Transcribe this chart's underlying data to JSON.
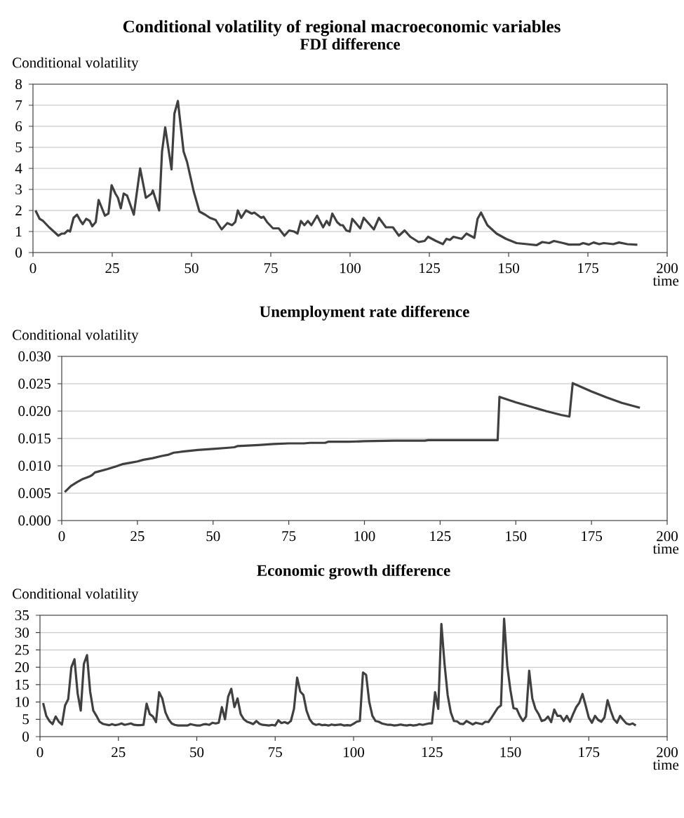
{
  "chart_data": [
    {
      "type": "line",
      "title": "FDI difference",
      "ylabel": "Conditional volatility",
      "xlabel": "time",
      "annotations": [
        "Conditional volatility of regional macroeconomic variables"
      ],
      "color": "#404040",
      "grid": "y",
      "xlim": [
        0,
        200
      ],
      "xticks": [
        0,
        25,
        50,
        75,
        100,
        125,
        150,
        175,
        200
      ],
      "ylim": [
        0,
        8
      ],
      "yticks": [
        0,
        1,
        2,
        3,
        4,
        5,
        6,
        7,
        8
      ],
      "x": [
        0.8,
        2.1,
        3.2,
        5.1,
        7.3,
        8,
        9.1,
        9.9,
        11,
        11.7,
        12.8,
        13.9,
        15,
        15.7,
        16.8,
        17.9,
        18.7,
        19.8,
        20.7,
        22.7,
        23.8,
        24.8,
        26,
        26.8,
        27.7,
        28.6,
        29.7,
        31.8,
        33.8,
        35.6,
        37.4,
        37.8,
        39.8,
        40.7,
        41.7,
        43.7,
        44.6,
        45.7,
        46.6,
        47.5,
        48.6,
        50.7,
        52.5,
        54.3,
        55.8,
        57.6,
        59.5,
        61.3,
        62.8,
        63.8,
        64.6,
        65.7,
        67.2,
        69,
        69.8,
        72,
        72.7,
        73.8,
        75.7,
        77.5,
        79.3,
        80.8,
        82.3,
        83.4,
        84.5,
        85.6,
        86.7,
        87.8,
        89.6,
        91.5,
        92.6,
        93.5,
        94.4,
        95.9,
        97,
        97.7,
        98.8,
        99.9,
        100.7,
        103.2,
        104.3,
        107.5,
        109.1,
        111.3,
        113.5,
        115.4,
        117.2,
        119,
        121.6,
        123.5,
        124.6,
        127.1,
        129.3,
        130.4,
        131.5,
        132.6,
        135.2,
        136.7,
        139.2,
        140.2,
        141.3,
        143.3,
        146.2,
        149.2,
        152.5,
        155.8,
        158.8,
        160.6,
        162.8,
        164.3,
        167.2,
        169,
        172.4,
        173.5,
        175.3,
        176.8,
        178.6,
        180,
        183,
        184.8,
        187.4,
        190.6
      ],
      "values": [
        2.0,
        1.6,
        1.5,
        1.2,
        0.9,
        0.8,
        0.9,
        0.9,
        1.05,
        1.0,
        1.65,
        1.8,
        1.5,
        1.35,
        1.6,
        1.5,
        1.25,
        1.45,
        2.5,
        1.75,
        1.85,
        3.2,
        2.8,
        2.6,
        2.1,
        2.8,
        2.7,
        1.8,
        4.0,
        2.6,
        2.8,
        2.95,
        2.0,
        4.8,
        5.95,
        3.95,
        6.6,
        7.2,
        6.0,
        4.8,
        4.3,
        2.9,
        1.95,
        1.8,
        1.65,
        1.55,
        1.1,
        1.4,
        1.3,
        1.45,
        2.0,
        1.65,
        2.0,
        1.85,
        1.9,
        1.65,
        1.7,
        1.45,
        1.15,
        1.15,
        0.8,
        1.05,
        1.0,
        0.9,
        1.5,
        1.3,
        1.5,
        1.3,
        1.75,
        1.2,
        1.5,
        1.3,
        1.85,
        1.45,
        1.3,
        1.3,
        1.05,
        1.0,
        1.6,
        1.15,
        1.65,
        1.1,
        1.65,
        1.2,
        1.2,
        0.8,
        1.05,
        0.75,
        0.5,
        0.55,
        0.75,
        0.55,
        0.4,
        0.65,
        0.6,
        0.75,
        0.65,
        0.9,
        0.7,
        1.6,
        1.9,
        1.3,
        0.9,
        0.65,
        0.45,
        0.4,
        0.35,
        0.5,
        0.45,
        0.55,
        0.45,
        0.38,
        0.38,
        0.45,
        0.38,
        0.48,
        0.4,
        0.45,
        0.4,
        0.48,
        0.4,
        0.37
      ]
    },
    {
      "type": "line",
      "title": "Unemployment rate difference",
      "ylabel": "Conditional volatility",
      "xlabel": "time",
      "color": "#404040",
      "grid": "y",
      "xlim": [
        0,
        200
      ],
      "xticks": [
        0,
        25,
        50,
        75,
        100,
        125,
        150,
        175,
        200
      ],
      "ylim": [
        0,
        0.03
      ],
      "yticks": [
        {
          "value": 0,
          "label": "0.000"
        },
        {
          "value": 0.005,
          "label": "0.005"
        },
        {
          "value": 0.01,
          "label": "0.010"
        },
        {
          "value": 0.015,
          "label": "0.015"
        },
        {
          "value": 0.02,
          "label": "0.020"
        },
        {
          "value": 0.025,
          "label": "0.025"
        },
        {
          "value": 0.03,
          "label": "0.030"
        }
      ],
      "x": [
        1,
        3,
        5,
        7,
        9,
        10,
        11,
        13,
        15,
        18,
        20,
        23,
        25,
        27,
        30,
        33,
        35,
        37,
        40,
        45,
        50,
        55,
        57,
        58,
        65,
        70,
        75,
        80,
        82,
        87,
        88,
        95,
        100,
        110,
        120,
        121,
        144,
        144.6,
        150,
        155,
        160,
        165,
        167.7,
        168.8,
        175,
        180,
        185,
        191
      ],
      "values": [
        0.0052,
        0.0063,
        0.007,
        0.0076,
        0.008,
        0.0083,
        0.0088,
        0.0091,
        0.0094,
        0.0099,
        0.0103,
        0.0106,
        0.0108,
        0.0111,
        0.0114,
        0.0118,
        0.012,
        0.0124,
        0.0126,
        0.0129,
        0.0131,
        0.0133,
        0.0134,
        0.0136,
        0.0138,
        0.014,
        0.0141,
        0.0141,
        0.0142,
        0.0142,
        0.0144,
        0.0144,
        0.0145,
        0.0146,
        0.0146,
        0.0147,
        0.0147,
        0.0226,
        0.0216,
        0.0208,
        0.02,
        0.0193,
        0.019,
        0.0251,
        0.0236,
        0.0225,
        0.0215,
        0.0206
      ]
    },
    {
      "type": "line",
      "title": "Economic growth difference",
      "ylabel": "Conditional volatility",
      "xlabel": "time",
      "color": "#404040",
      "grid": "y",
      "xlim": [
        0,
        200
      ],
      "xticks": [
        0,
        25,
        50,
        75,
        100,
        125,
        150,
        175,
        200
      ],
      "ylim": [
        0,
        35
      ],
      "yticks": [
        0,
        5,
        10,
        15,
        20,
        25,
        30,
        35
      ],
      "x": [
        1,
        2,
        3,
        4,
        5,
        6,
        7,
        8,
        9,
        10,
        11,
        12,
        13,
        14,
        15,
        16,
        17,
        18,
        19,
        20,
        21,
        22,
        23,
        24,
        25,
        26,
        27,
        28,
        29,
        30,
        31,
        32,
        33,
        34,
        35,
        36,
        37,
        38,
        39,
        40,
        41,
        42,
        43,
        44,
        45,
        46,
        47,
        48,
        49,
        50,
        51,
        52,
        53,
        54,
        55,
        56,
        57,
        58,
        59,
        60,
        61,
        62,
        63,
        64,
        65,
        66,
        67,
        68,
        69,
        70,
        71,
        72,
        73,
        74,
        75,
        76,
        77,
        78,
        79,
        80,
        81,
        82,
        83,
        84,
        85,
        86,
        87,
        88,
        89,
        90,
        91,
        92,
        93,
        94,
        95,
        96,
        97,
        98,
        99,
        100,
        101,
        102,
        103,
        104,
        105,
        106,
        107,
        108,
        109,
        110,
        111,
        112,
        113,
        114,
        115,
        116,
        117,
        118,
        119,
        120,
        121,
        122,
        123,
        124,
        125,
        126,
        127,
        128,
        129,
        130,
        131,
        132,
        133,
        134,
        135,
        136,
        137,
        138,
        139,
        140,
        141,
        142,
        143,
        144,
        146,
        147,
        148,
        149,
        150,
        151,
        152,
        153,
        154,
        155,
        156,
        157,
        158,
        159,
        160,
        161,
        162,
        163,
        164,
        165,
        166,
        167,
        168,
        169,
        170,
        171,
        172,
        173,
        174,
        175,
        176,
        177,
        178,
        179,
        180,
        181,
        182,
        183,
        184,
        185,
        186,
        187,
        188,
        189,
        190
      ],
      "values": [
        9.7,
        6,
        4.5,
        3.6,
        5.8,
        4.3,
        3.5,
        9,
        10.8,
        20,
        22.3,
        12.5,
        7.5,
        21,
        23.5,
        13,
        7.5,
        6,
        4.3,
        3.7,
        3.5,
        3.3,
        3.6,
        3.3,
        3.5,
        3.8,
        3.4,
        3.6,
        3.8,
        3.4,
        3.3,
        3.3,
        3.4,
        9.5,
        6.5,
        5.8,
        4.2,
        12.8,
        11,
        7,
        5,
        3.8,
        3.4,
        3.2,
        3.2,
        3.2,
        3.2,
        3.6,
        3.4,
        3.2,
        3.2,
        3.5,
        3.6,
        3.4,
        4,
        3.8,
        4,
        8.5,
        5,
        11.5,
        13.8,
        8.5,
        11,
        6.5,
        5,
        4.3,
        4,
        3.6,
        4.5,
        3.7,
        3.4,
        3.3,
        3.2,
        3.4,
        3.2,
        4.7,
        3.9,
        4.2,
        3.8,
        4.5,
        8,
        17,
        13,
        12,
        7.5,
        5,
        3.8,
        3.4,
        3.6,
        3.3,
        3.4,
        3.2,
        3.5,
        3.3,
        3.4,
        3.5,
        3.2,
        3.3,
        3.2,
        3.7,
        4.3,
        4.5,
        18.5,
        17.8,
        10,
        6,
        4.5,
        4.3,
        3.8,
        3.6,
        3.4,
        3.4,
        3.2,
        3.3,
        3.5,
        3.3,
        3.2,
        3.4,
        3.2,
        3.3,
        3.6,
        3.4,
        3.6,
        3.8,
        3.8,
        12.8,
        8,
        32.5,
        21,
        12,
        7,
        4.5,
        4.4,
        3.7,
        3.6,
        4.5,
        4,
        3.5,
        4,
        3.8,
        3.6,
        4.3,
        4.2,
        5.5,
        8.3,
        9,
        34,
        20.5,
        13.5,
        8.2,
        8,
        6,
        4.5,
        5.8,
        19,
        11,
        8,
        6.5,
        4.5,
        4.8,
        5.8,
        4.2,
        7.8,
        6,
        6,
        4.5,
        6,
        4.3,
        6.5,
        8.5,
        9.8,
        12.3,
        9,
        5.5,
        4,
        6,
        4.8,
        4.3,
        5.5,
        10.5,
        7.5,
        5,
        4,
        6,
        4.8,
        3.8,
        3.5,
        3.8,
        3.2
      ]
    }
  ]
}
